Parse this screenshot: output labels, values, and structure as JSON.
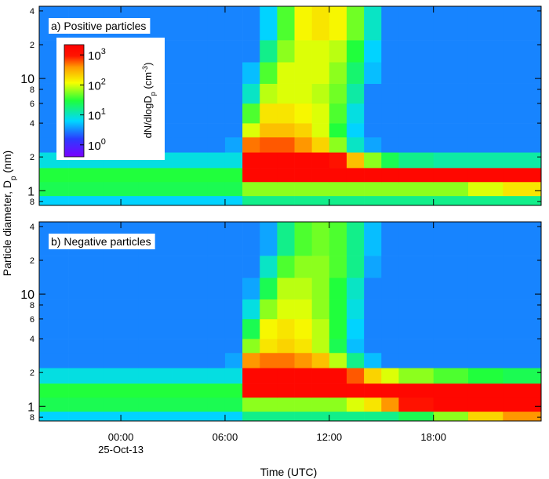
{
  "chart_data": [
    {
      "type": "heatmap",
      "title": "a) Positive particles",
      "ylabel_parts": [
        "Particle diameter, D",
        "p",
        " (nm)"
      ],
      "x_edges": [
        -4.7,
        -3,
        -1,
        1,
        3,
        5,
        6,
        7,
        8,
        9,
        10,
        11,
        12,
        13,
        14,
        15,
        16,
        18,
        20,
        22,
        24.2
      ],
      "y_edges": [
        0.74,
        0.9,
        1.2,
        1.6,
        2.2,
        3,
        4,
        6,
        9,
        14,
        22,
        44
      ],
      "z": [
        [
          6,
          6,
          6,
          6,
          6,
          6,
          6,
          16,
          16,
          16,
          16,
          16,
          16,
          16,
          16,
          16,
          16,
          16,
          16,
          16
        ],
        [
          25,
          25,
          25,
          25,
          25,
          25,
          25,
          60,
          60,
          60,
          60,
          60,
          60,
          60,
          60,
          60,
          60,
          60,
          100,
          160
        ],
        [
          30,
          30,
          30,
          30,
          30,
          30,
          30,
          1600,
          1600,
          1600,
          1600,
          1600,
          1600,
          1600,
          1600,
          1600,
          1600,
          1600,
          1600,
          1600
        ],
        [
          8,
          8,
          8,
          8,
          8,
          8,
          8,
          1600,
          1600,
          1600,
          1600,
          1600,
          1000,
          250,
          60,
          25,
          16,
          13,
          13,
          13
        ],
        [
          3,
          3,
          3,
          3,
          3,
          3,
          4,
          500,
          600,
          600,
          400,
          200,
          60,
          10,
          4,
          3,
          3,
          3,
          3,
          3
        ],
        [
          3,
          3,
          3,
          3,
          3,
          3,
          3,
          100,
          250,
          250,
          200,
          100,
          30,
          6,
          3,
          3,
          3,
          3,
          3,
          3
        ],
        [
          3,
          3,
          3,
          3,
          3,
          3,
          3,
          40,
          160,
          160,
          130,
          100,
          40,
          8,
          3,
          3,
          3,
          3,
          3,
          3
        ],
        [
          3,
          3,
          3,
          3,
          3,
          3,
          3,
          10,
          80,
          100,
          100,
          80,
          50,
          13,
          3,
          3,
          3,
          3,
          3,
          3
        ],
        [
          3,
          3,
          3,
          3,
          3,
          3,
          3,
          5,
          40,
          100,
          100,
          100,
          60,
          20,
          5,
          3,
          3,
          3,
          3,
          3
        ],
        [
          3,
          3,
          3,
          3,
          3,
          3,
          3,
          3,
          16,
          60,
          100,
          100,
          80,
          30,
          6,
          3,
          3,
          3,
          3,
          3
        ],
        [
          3,
          3,
          3,
          3,
          3,
          3,
          3,
          3,
          6,
          40,
          130,
          160,
          130,
          50,
          10,
          3,
          3,
          3,
          3,
          3
        ]
      ],
      "xlim": [
        -4.7,
        24.2
      ],
      "ylim": [
        0.74,
        44
      ],
      "log_y": true,
      "yticks": [
        {
          "value": 0.8,
          "label": "8"
        },
        1,
        2,
        4,
        6,
        8,
        10,
        {
          "value": 20,
          "label": "2"
        },
        {
          "value": 40,
          "label": "4"
        }
      ],
      "colormap": "rainbow",
      "colorbar": {
        "clim": [
          0.4,
          2200
        ],
        "log": true,
        "ticks": [
          {
            "value": 1,
            "label": "10",
            "sup": "0"
          },
          {
            "value": 10,
            "label": "10",
            "sup": "1"
          },
          {
            "value": 100,
            "label": "10",
            "sup": "2"
          },
          {
            "value": 1000,
            "label": "10",
            "sup": "3"
          }
        ],
        "label_parts": [
          "dN/dlogD",
          "p",
          " (cm",
          "-3",
          ")"
        ]
      }
    },
    {
      "type": "heatmap",
      "title": "b) Negative particles",
      "xlabel": "Time (UTC)",
      "date_label": "25-Oct-13",
      "x_edges": [
        -4.7,
        -3,
        -1,
        1,
        3,
        5,
        6,
        7,
        8,
        9,
        10,
        11,
        12,
        13,
        14,
        15,
        16,
        18,
        20,
        22,
        24.2
      ],
      "y_edges": [
        0.74,
        0.9,
        1.2,
        1.6,
        2.2,
        3,
        4,
        6,
        9,
        14,
        22,
        44
      ],
      "z": [
        [
          6,
          6,
          6,
          6,
          6,
          6,
          6,
          16,
          16,
          16,
          16,
          16,
          16,
          16,
          16,
          16,
          25,
          60,
          200,
          400
        ],
        [
          25,
          25,
          25,
          25,
          25,
          25,
          25,
          60,
          60,
          60,
          60,
          60,
          60,
          100,
          160,
          400,
          1000,
          1600,
          1600,
          1600
        ],
        [
          30,
          30,
          30,
          30,
          30,
          30,
          30,
          1600,
          1600,
          1600,
          1600,
          1600,
          1600,
          1600,
          1600,
          1600,
          1600,
          1600,
          1600,
          1600
        ],
        [
          8,
          8,
          8,
          8,
          8,
          8,
          8,
          1600,
          1600,
          1600,
          1600,
          1600,
          1600,
          600,
          200,
          100,
          60,
          40,
          30,
          25
        ],
        [
          3,
          3,
          3,
          3,
          3,
          3,
          4,
          400,
          500,
          500,
          400,
          250,
          80,
          16,
          5,
          3,
          3,
          3,
          3,
          3
        ],
        [
          3,
          3,
          3,
          3,
          3,
          3,
          3,
          60,
          160,
          200,
          160,
          80,
          25,
          5,
          3,
          3,
          3,
          3,
          3,
          3
        ],
        [
          3,
          3,
          3,
          3,
          3,
          3,
          3,
          25,
          130,
          160,
          130,
          80,
          30,
          6,
          3,
          3,
          3,
          3,
          3,
          3
        ],
        [
          3,
          3,
          3,
          3,
          3,
          3,
          3,
          8,
          60,
          100,
          100,
          60,
          30,
          8,
          3,
          3,
          3,
          3,
          3,
          3
        ],
        [
          3,
          3,
          3,
          3,
          3,
          3,
          3,
          4,
          25,
          80,
          80,
          60,
          30,
          10,
          3,
          3,
          3,
          3,
          3,
          3
        ],
        [
          3,
          3,
          3,
          3,
          3,
          3,
          3,
          3,
          10,
          40,
          60,
          60,
          40,
          16,
          4,
          3,
          3,
          3,
          3,
          3
        ],
        [
          3,
          3,
          3,
          3,
          3,
          3,
          3,
          3,
          4,
          16,
          40,
          50,
          40,
          16,
          5,
          3,
          3,
          3,
          3,
          3
        ]
      ],
      "xlim": [
        -4.7,
        24.2
      ],
      "ylim": [
        0.74,
        44
      ],
      "log_y": true,
      "xticks": [
        {
          "value": 0,
          "label": "00:00"
        },
        {
          "value": 6,
          "label": "06:00"
        },
        {
          "value": 12,
          "label": "12:00"
        },
        {
          "value": 18,
          "label": "18:00"
        }
      ],
      "yticks": [
        {
          "value": 0.8,
          "label": "8"
        },
        1,
        2,
        4,
        6,
        8,
        10,
        {
          "value": 20,
          "label": "2"
        },
        {
          "value": 40,
          "label": "4"
        }
      ],
      "colormap": "rainbow"
    }
  ]
}
